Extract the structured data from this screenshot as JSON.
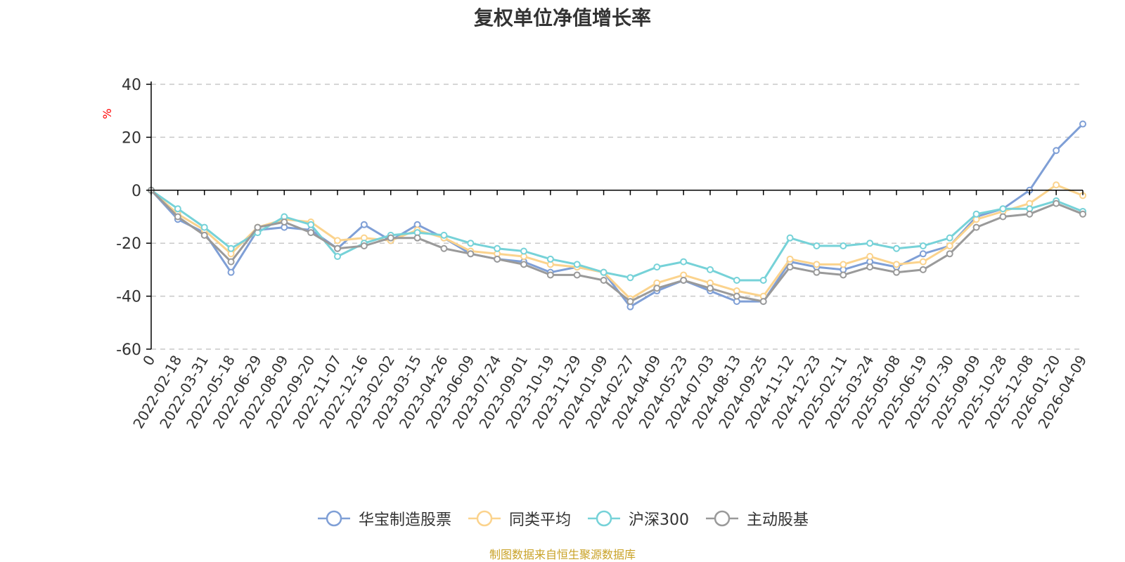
{
  "colors": {
    "series": [
      "#7f9fd6",
      "#fbd38d",
      "#76d2d8",
      "#9a9a9a"
    ],
    "axis": "#000000",
    "grid": "#c8c8c8",
    "text": "#333333",
    "unit": "#ff0000",
    "source": "#c9a227"
  },
  "source_note": "制图数据来自恒生聚源数据库",
  "chart_data": {
    "type": "line",
    "title": "复权单位净值增长率",
    "ylabel": "%",
    "xlabel": "",
    "ylim": [
      -60,
      40
    ],
    "yticks": [
      40,
      20,
      0,
      -20,
      -40,
      -60
    ],
    "grid": "horizontal dashed",
    "legend_position": "bottom",
    "x": [
      "0",
      "2022-02-18",
      "2022-03-31",
      "2022-05-18",
      "2022-06-29",
      "2022-08-09",
      "2022-09-20",
      "2022-11-07",
      "2022-12-16",
      "2023-02-02",
      "2023-03-15",
      "2023-04-26",
      "2023-06-09",
      "2023-07-24",
      "2023-09-01",
      "2023-10-19",
      "2023-11-29",
      "2024-01-09",
      "2024-02-27",
      "2024-04-09",
      "2024-05-23",
      "2024-07-03",
      "2024-08-13",
      "2024-09-25",
      "2024-11-12",
      "2024-12-23",
      "2025-02-11",
      "2025-03-24",
      "2025-05-08",
      "2025-06-19",
      "2025-07-30",
      "2025-09-09",
      "2025-10-28",
      "2025-12-08",
      "2026-01-20",
      "2026-04-09"
    ],
    "series": [
      {
        "name": "华宝制造股票",
        "values": [
          0,
          -11,
          -16,
          -31,
          -15,
          -14,
          -15,
          -22,
          -13,
          -19,
          -13,
          -18,
          -24,
          -26,
          -27,
          -31,
          -29,
          -31,
          -44,
          -38,
          -34,
          -38,
          -42,
          -42,
          -27,
          -29,
          -30,
          -27,
          -29,
          -24,
          -21,
          -10,
          -7,
          0,
          15,
          25
        ]
      },
      {
        "name": "同类平均",
        "values": [
          0,
          -9,
          -15,
          -24,
          -14,
          -11,
          -12,
          -19,
          -18,
          -19,
          -15,
          -18,
          -23,
          -24,
          -25,
          -28,
          -29,
          -31,
          -41,
          -35,
          -32,
          -35,
          -38,
          -40,
          -26,
          -28,
          -28,
          -25,
          -28,
          -27,
          -21,
          -11,
          -8,
          -5,
          2,
          -2
        ]
      },
      {
        "name": "沪深300",
        "values": [
          0,
          -7,
          -14,
          -22,
          -16,
          -10,
          -13,
          -25,
          -20,
          -17,
          -16,
          -17,
          -20,
          -22,
          -23,
          -26,
          -28,
          -31,
          -33,
          -29,
          -27,
          -30,
          -34,
          -34,
          -18,
          -21,
          -21,
          -20,
          -22,
          -21,
          -18,
          -9,
          -7,
          -7,
          -4,
          -8
        ]
      },
      {
        "name": "主动股基",
        "values": [
          0,
          -10,
          -17,
          -27,
          -14,
          -12,
          -16,
          -22,
          -21,
          -18,
          -18,
          -22,
          -24,
          -26,
          -28,
          -32,
          -32,
          -34,
          -42,
          -37,
          -34,
          -37,
          -40,
          -42,
          -29,
          -31,
          -32,
          -29,
          -31,
          -30,
          -24,
          -14,
          -10,
          -9,
          -5,
          -9
        ]
      }
    ]
  }
}
